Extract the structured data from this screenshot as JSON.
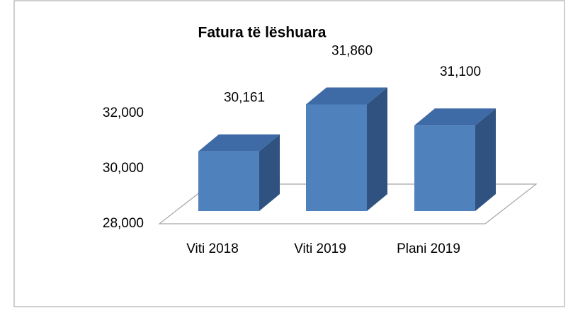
{
  "chart_data": {
    "type": "bar3d",
    "title": "Fatura të lëshuara",
    "categories": [
      "Viti 2018",
      "Viti 2019",
      "Plani 2019"
    ],
    "values": [
      30161,
      31860,
      31100
    ],
    "value_labels": [
      "30,161",
      "31,860",
      "31,100"
    ],
    "color": "#4f81bd",
    "ylim": [
      28000,
      32000
    ],
    "yticks": [
      {
        "value": 28000,
        "label": "28,000"
      },
      {
        "value": 30000,
        "label": "30,000"
      },
      {
        "value": 32000,
        "label": "32,000"
      }
    ]
  }
}
